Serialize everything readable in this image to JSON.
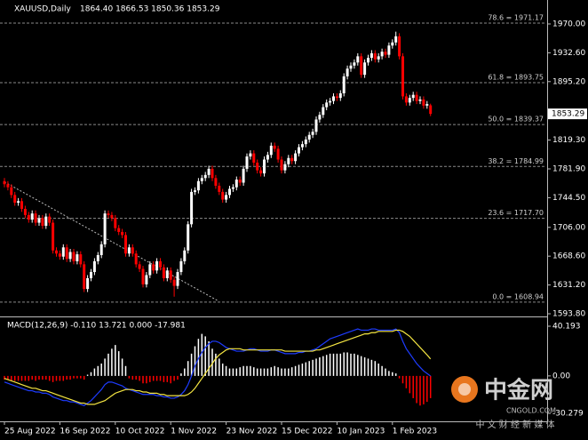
{
  "chart_data": {
    "type": "candlestick",
    "title": "XAUUSD,Daily",
    "ohlc_text": "1864.40 1866.53 1850.36 1853.29",
    "up_color": "#ffffff",
    "down_color": "#ff0000",
    "categories": [
      "25 Aug 2022",
      null,
      null,
      null,
      null,
      null,
      null,
      null,
      null,
      null,
      null,
      null,
      null,
      null,
      null,
      null,
      "16 Sep 2022",
      null,
      null,
      null,
      null,
      null,
      null,
      null,
      null,
      null,
      null,
      null,
      null,
      null,
      null,
      null,
      "10 Oct 2022",
      null,
      null,
      null,
      null,
      null,
      null,
      null,
      null,
      null,
      null,
      null,
      null,
      null,
      null,
      null,
      "1 Nov 2022",
      null,
      null,
      null,
      null,
      null,
      null,
      null,
      null,
      null,
      null,
      null,
      null,
      null,
      null,
      null,
      "23 Nov 2022",
      null,
      null,
      null,
      null,
      null,
      null,
      null,
      null,
      null,
      null,
      null,
      null,
      null,
      null,
      null,
      "15 Dec 2022",
      null,
      null,
      null,
      null,
      null,
      null,
      null,
      null,
      null,
      null,
      null,
      null,
      null,
      null,
      null,
      "10 Jan 2023",
      null,
      null,
      null,
      null,
      null,
      null,
      null,
      null,
      null,
      null,
      null,
      null,
      null,
      null,
      null,
      "1 Feb 2023",
      null,
      null,
      null,
      null,
      null,
      null,
      null,
      null,
      null,
      null,
      null
    ],
    "open": [
      1766,
      1762,
      1758,
      1748,
      1738,
      1740,
      1730,
      1722,
      1716,
      1724,
      1712,
      1718,
      1708,
      1720,
      1712,
      1676,
      1672,
      1668,
      1680,
      1665,
      1674,
      1662,
      1671,
      1658,
      1626,
      1640,
      1648,
      1662,
      1670,
      1684,
      1724,
      1722,
      1718,
      1705,
      1700,
      1696,
      1672,
      1680,
      1672,
      1658,
      1652,
      1632,
      1644,
      1658,
      1650,
      1662,
      1654,
      1640,
      1650,
      1638,
      1630,
      1648,
      1662,
      1676,
      1710,
      1752,
      1754,
      1766,
      1770,
      1774,
      1782,
      1770,
      1760,
      1752,
      1742,
      1748,
      1756,
      1758,
      1768,
      1764,
      1782,
      1798,
      1802,
      1790,
      1780,
      1776,
      1794,
      1800,
      1812,
      1808,
      1794,
      1780,
      1788,
      1796,
      1792,
      1802,
      1810,
      1814,
      1820,
      1826,
      1830,
      1846,
      1852,
      1862,
      1868,
      1870,
      1876,
      1874,
      1880,
      1902,
      1912,
      1916,
      1920,
      1928,
      1904,
      1920,
      1926,
      1932,
      1924,
      1928,
      1934,
      1930,
      1942,
      1946,
      1954,
      1928,
      1876,
      1868,
      1874,
      1878,
      1870,
      1872,
      1864,
      1864.4
    ],
    "high": [
      1770,
      1766,
      1762,
      1752,
      1744,
      1744,
      1734,
      1726,
      1728,
      1728,
      1722,
      1722,
      1724,
      1724,
      1716,
      1680,
      1676,
      1684,
      1684,
      1678,
      1678,
      1675,
      1675,
      1662,
      1644,
      1652,
      1666,
      1674,
      1688,
      1728,
      1728,
      1726,
      1722,
      1709,
      1704,
      1700,
      1684,
      1684,
      1676,
      1662,
      1656,
      1648,
      1662,
      1662,
      1666,
      1666,
      1658,
      1654,
      1654,
      1642,
      1652,
      1666,
      1680,
      1714,
      1756,
      1758,
      1770,
      1774,
      1778,
      1786,
      1786,
      1774,
      1764,
      1756,
      1752,
      1760,
      1762,
      1772,
      1772,
      1786,
      1802,
      1806,
      1806,
      1794,
      1784,
      1798,
      1804,
      1816,
      1816,
      1812,
      1798,
      1792,
      1800,
      1800,
      1806,
      1814,
      1818,
      1824,
      1830,
      1834,
      1850,
      1856,
      1866,
      1872,
      1874,
      1880,
      1880,
      1884,
      1906,
      1916,
      1920,
      1924,
      1932,
      1932,
      1924,
      1930,
      1936,
      1936,
      1932,
      1938,
      1938,
      1946,
      1950,
      1960,
      1958,
      1932,
      1880,
      1878,
      1882,
      1882,
      1876,
      1876,
      1870,
      1866.53
    ],
    "low": [
      1758,
      1754,
      1744,
      1734,
      1734,
      1726,
      1718,
      1712,
      1712,
      1708,
      1708,
      1704,
      1704,
      1708,
      1672,
      1668,
      1664,
      1664,
      1661,
      1661,
      1658,
      1658,
      1654,
      1622,
      1622,
      1636,
      1644,
      1658,
      1666,
      1680,
      1718,
      1714,
      1701,
      1696,
      1692,
      1668,
      1668,
      1668,
      1654,
      1648,
      1628,
      1628,
      1640,
      1646,
      1646,
      1650,
      1636,
      1636,
      1634,
      1616,
      1626,
      1644,
      1658,
      1672,
      1706,
      1748,
      1750,
      1762,
      1766,
      1770,
      1766,
      1756,
      1748,
      1738,
      1738,
      1744,
      1752,
      1754,
      1760,
      1760,
      1778,
      1794,
      1786,
      1776,
      1772,
      1772,
      1790,
      1796,
      1804,
      1790,
      1776,
      1776,
      1784,
      1788,
      1788,
      1798,
      1806,
      1810,
      1816,
      1822,
      1826,
      1842,
      1848,
      1858,
      1864,
      1866,
      1870,
      1870,
      1876,
      1898,
      1908,
      1912,
      1916,
      1900,
      1900,
      1916,
      1922,
      1920,
      1920,
      1924,
      1926,
      1926,
      1938,
      1942,
      1924,
      1872,
      1864,
      1864,
      1870,
      1866,
      1866,
      1860,
      1860,
      1850.36
    ],
    "close": [
      1762,
      1758,
      1748,
      1738,
      1740,
      1730,
      1722,
      1716,
      1724,
      1712,
      1718,
      1708,
      1720,
      1712,
      1676,
      1672,
      1668,
      1680,
      1665,
      1674,
      1662,
      1671,
      1658,
      1626,
      1640,
      1648,
      1662,
      1670,
      1684,
      1724,
      1722,
      1718,
      1705,
      1700,
      1696,
      1672,
      1680,
      1672,
      1658,
      1652,
      1632,
      1644,
      1658,
      1650,
      1662,
      1654,
      1640,
      1650,
      1638,
      1630,
      1648,
      1662,
      1676,
      1710,
      1752,
      1754,
      1766,
      1770,
      1774,
      1782,
      1770,
      1760,
      1752,
      1742,
      1748,
      1756,
      1758,
      1768,
      1764,
      1782,
      1798,
      1802,
      1790,
      1780,
      1776,
      1794,
      1800,
      1812,
      1808,
      1794,
      1780,
      1788,
      1796,
      1792,
      1802,
      1810,
      1814,
      1820,
      1826,
      1830,
      1846,
      1852,
      1862,
      1868,
      1870,
      1876,
      1874,
      1880,
      1902,
      1912,
      1916,
      1920,
      1928,
      1904,
      1920,
      1926,
      1932,
      1924,
      1928,
      1934,
      1930,
      1942,
      1946,
      1954,
      1928,
      1876,
      1868,
      1874,
      1878,
      1870,
      1872,
      1864,
      1866,
      1853.29
    ],
    "ylim": [
      1591.5,
      1998.8
    ],
    "yticks": [
      {
        "value": 1970,
        "label": "1970.00"
      },
      {
        "value": 1932.6,
        "label": "1932.60"
      },
      {
        "value": 1895.2,
        "label": "1895.20"
      },
      {
        "value": 1819.3,
        "label": "1819.30"
      },
      {
        "value": 1781.9,
        "label": "1781.90"
      },
      {
        "value": 1744.5,
        "label": "1744.50"
      },
      {
        "value": 1706,
        "label": "1706.00"
      },
      {
        "value": 1668.6,
        "label": "1668.60"
      },
      {
        "value": 1631.2,
        "label": "1631.20"
      },
      {
        "value": 1593.8,
        "label": "1593.80"
      }
    ],
    "last_price": 1853.29,
    "fib_levels": [
      {
        "value": 1971.17,
        "label": "78.6 = 1971.17"
      },
      {
        "value": 1893.75,
        "label": "61.8 = 1893.75"
      },
      {
        "value": 1839.37,
        "label": "50.0 = 1839.37"
      },
      {
        "value": 1784.99,
        "label": "38.2 = 1784.99"
      },
      {
        "value": 1717.7,
        "label": "23.6 = 1717.70"
      },
      {
        "value": 1608.94,
        "label": "0.0 = 1608.94"
      }
    ],
    "trendline": {
      "x": [
        0,
        61.5
      ],
      "y": [
        1765,
        1611
      ]
    },
    "indicator": {
      "title": "MACD(12,26,9) -0.110 13.721 0.000 -17.981",
      "ylim": [
        -36.03,
        46.67
      ],
      "yticks": [
        40.193,
        {
          "value": 0,
          "label": "0.00"
        },
        -30.279
      ],
      "up_color": "#ffffff",
      "down_color": "#ff0000",
      "histogram": [
        -3,
        -3,
        -4,
        -4,
        -4,
        -4,
        -4,
        -4,
        -3,
        -4,
        -3,
        -3,
        -3,
        -4,
        -5,
        -4,
        -4,
        -4,
        -3,
        -3,
        -2,
        -2,
        -2,
        -3,
        1,
        3,
        6,
        8,
        10,
        14,
        18,
        22,
        25,
        20,
        14,
        8,
        -2,
        -3,
        -3,
        -4,
        -6,
        -6,
        -5,
        -4,
        -4,
        -4,
        -5,
        -5,
        -6,
        -4,
        -3,
        2,
        6,
        12,
        18,
        24,
        30,
        34,
        32,
        28,
        22,
        18,
        14,
        10,
        8,
        6,
        6,
        6,
        7,
        8,
        8,
        8,
        7,
        6,
        6,
        6,
        6,
        7,
        8,
        7,
        6,
        6,
        6,
        7,
        8,
        9,
        10,
        11,
        12,
        13,
        14,
        15,
        16,
        17,
        18,
        18,
        18,
        18,
        19,
        19,
        18,
        18,
        17,
        16,
        15,
        14,
        13,
        12,
        10,
        8,
        6,
        4,
        3,
        2,
        -2,
        -6,
        -10,
        -14,
        -18,
        -22,
        -24,
        -23,
        -21,
        -17.981
      ],
      "lines": [
        {
          "color": "#1e3cff",
          "values": [
            -5,
            -6,
            -7,
            -8,
            -9,
            -10,
            -11,
            -12,
            -12,
            -13,
            -13,
            -14,
            -14,
            -15,
            -17,
            -18,
            -19,
            -20,
            -20,
            -21,
            -21,
            -22,
            -23,
            -24,
            -22,
            -20,
            -17,
            -14,
            -11,
            -7,
            -5,
            -5,
            -6,
            -7,
            -8,
            -10,
            -11,
            -12,
            -13,
            -14,
            -15,
            -15,
            -15,
            -15,
            -16,
            -16,
            -17,
            -17,
            -18,
            -18,
            -17,
            -15,
            -12,
            -7,
            0,
            8,
            14,
            19,
            23,
            26,
            28,
            28,
            27,
            25,
            23,
            22,
            21,
            20,
            20,
            20,
            21,
            22,
            22,
            21,
            20,
            20,
            20,
            21,
            21,
            20,
            19,
            18,
            18,
            18,
            18,
            19,
            19,
            20,
            20,
            21,
            22,
            24,
            26,
            28,
            30,
            31,
            32,
            33,
            34,
            35,
            36,
            37,
            38,
            37,
            37,
            37,
            38,
            38,
            37,
            37,
            37,
            37,
            37,
            38,
            35,
            28,
            22,
            18,
            14,
            10,
            7,
            4,
            2,
            -0.11
          ]
        },
        {
          "color": "#f5e642",
          "values": [
            -2,
            -3,
            -4,
            -5,
            -6,
            -7,
            -8,
            -9,
            -10,
            -10,
            -11,
            -12,
            -12,
            -13,
            -14,
            -15,
            -16,
            -17,
            -18,
            -19,
            -20,
            -21,
            -22,
            -22,
            -23,
            -23,
            -23,
            -22,
            -21,
            -20,
            -18,
            -16,
            -14,
            -13,
            -12,
            -11,
            -11,
            -11,
            -12,
            -12,
            -13,
            -13,
            -14,
            -14,
            -14,
            -15,
            -15,
            -16,
            -16,
            -16,
            -16,
            -16,
            -16,
            -15,
            -13,
            -10,
            -6,
            -2,
            2,
            6,
            10,
            14,
            17,
            19,
            21,
            22,
            22,
            22,
            22,
            21,
            21,
            21,
            21,
            21,
            21,
            21,
            21,
            21,
            21,
            21,
            21,
            20,
            20,
            20,
            20,
            20,
            20,
            20,
            20,
            20,
            21,
            21,
            22,
            23,
            24,
            25,
            26,
            27,
            28,
            29,
            30,
            31,
            32,
            33,
            34,
            34,
            35,
            35,
            36,
            36,
            36,
            36,
            36,
            37,
            37,
            36,
            34,
            32,
            29,
            26,
            23,
            20,
            17,
            13.721
          ]
        }
      ]
    },
    "watermark": {
      "logo": "中金网",
      "site": "CNGOLD.COM",
      "slogan": "中 文 财 经 新 媒 体"
    }
  }
}
